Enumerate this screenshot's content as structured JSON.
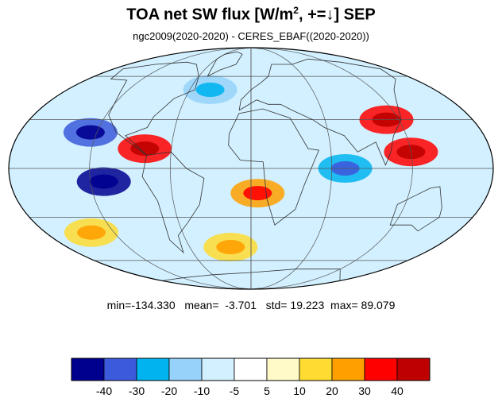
{
  "title": {
    "main": "TOA net SW flux [W/m",
    "superscript": "2",
    "suffix": ", +=↓]  SEP"
  },
  "subtitle": "ngc2009(2020-2020) - CERES_EBAF((2020-2020))",
  "stats": {
    "min_label": "min=",
    "min": "-134.330",
    "mean_label": "mean=",
    "mean": "-3.701",
    "std_label": "std=",
    "std": "19.223",
    "max_label": "max=",
    "max": "89.079"
  },
  "colorbar": {
    "colors": [
      "#00008f",
      "#3c5adc",
      "#00b4f0",
      "#96d2fa",
      "#d2f0ff",
      "#ffffff",
      "#fffac8",
      "#ffdc32",
      "#ffa000",
      "#ff0000",
      "#be0000"
    ],
    "tick_labels": [
      "-40",
      "-30",
      "-20",
      "-10",
      "-5",
      "5",
      "10",
      "20",
      "30",
      "40"
    ]
  },
  "map": {
    "projection": "mollweide",
    "parallels_deg": [
      -60,
      -30,
      0,
      30,
      60
    ],
    "meridians_deg": [
      -120,
      -60,
      0,
      60,
      120
    ],
    "anomalies": [
      {
        "region": "North Pacific subtropics",
        "lon": -125,
        "lat": 22,
        "value": -40
      },
      {
        "region": "Eastern tropical Pacific",
        "lon": -110,
        "lat": -8,
        "value": -45
      },
      {
        "region": "Central America / Caribbean",
        "lon": -80,
        "lat": 12,
        "value": 30
      },
      {
        "region": "Western Pacific / Maritime Continent",
        "lon": 120,
        "lat": 10,
        "value": 35
      },
      {
        "region": "East Asia",
        "lon": 110,
        "lat": 30,
        "value": 30
      },
      {
        "region": "Tropical Indian Ocean",
        "lon": 70,
        "lat": 0,
        "value": -30
      },
      {
        "region": "Southeast Atlantic",
        "lon": 5,
        "lat": -15,
        "value": 25
      },
      {
        "region": "Southern Ocean (Atlantic sector)",
        "lon": -20,
        "lat": -50,
        "value": 12
      },
      {
        "region": "North Atlantic",
        "lon": -40,
        "lat": 50,
        "value": -15
      },
      {
        "region": "South Pacific",
        "lon": -140,
        "lat": -40,
        "value": 10
      }
    ]
  }
}
